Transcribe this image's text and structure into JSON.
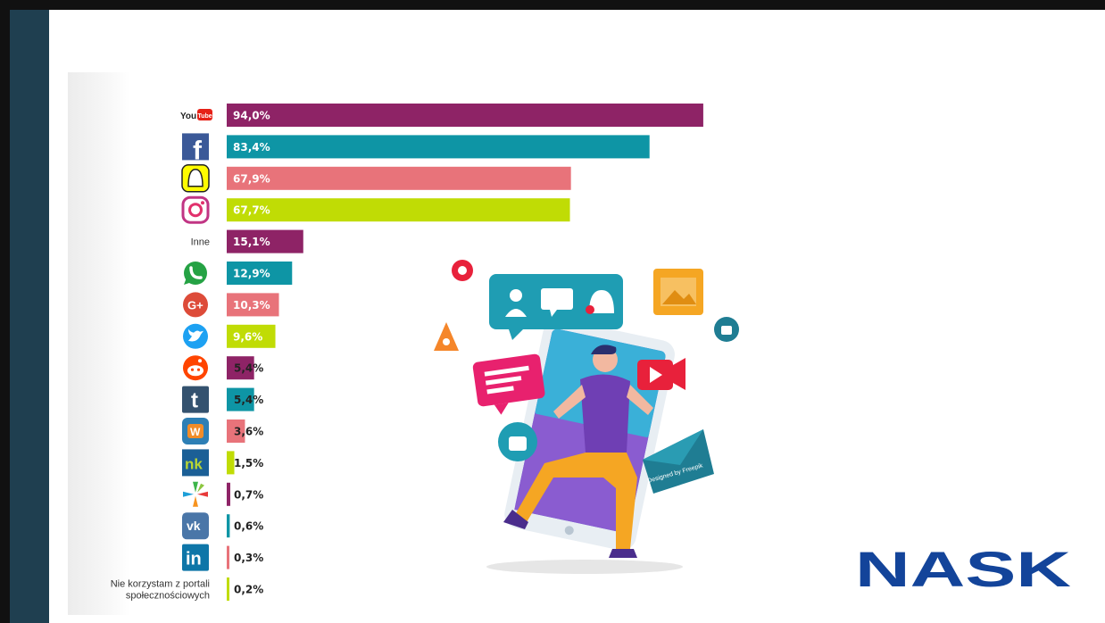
{
  "colors": {
    "purple": "#8e2366",
    "teal": "#0e95a5",
    "salmon": "#e8737a",
    "lime": "#c0dc05",
    "sidebar": "#1f3f50",
    "nask_blue": "#13449a"
  },
  "chart_data": {
    "type": "bar",
    "orientation": "horizontal",
    "categories": [
      "YouTube",
      "Facebook",
      "Snapchat",
      "Instagram",
      "Inne",
      "WhatsApp",
      "Google+",
      "Twitter",
      "Reddit",
      "Tumblr",
      "Wykop",
      "nk",
      "Gadu-Gadu",
      "VK",
      "LinkedIn",
      "Nie korzystam z portali społecznościowych"
    ],
    "values": [
      94.0,
      83.4,
      67.9,
      67.7,
      15.1,
      12.9,
      10.3,
      9.6,
      5.4,
      5.4,
      3.6,
      1.5,
      0.7,
      0.6,
      0.3,
      0.2
    ],
    "value_labels": [
      "94,0%",
      "83,4%",
      "67,9%",
      "67,7%",
      "15,1%",
      "12,9%",
      "10,3%",
      "9,6%",
      "5,4%",
      "5,4%",
      "3,6%",
      "1,5%",
      "0,7%",
      "0,6%",
      "0,3%",
      "0,2%"
    ],
    "xlim": [
      0,
      100
    ],
    "label_type": [
      "icon",
      "icon",
      "icon",
      "icon",
      "text",
      "icon",
      "icon",
      "icon",
      "icon",
      "icon",
      "icon",
      "icon",
      "icon",
      "icon",
      "icon",
      "text"
    ],
    "text_labels": {
      "4": [
        "Inne"
      ],
      "15": [
        "Nie korzystam z portali",
        "społecznościowych"
      ]
    },
    "bar_colors": [
      "#8e2366",
      "#0e95a5",
      "#e8737a",
      "#c0dc05",
      "#8e2366",
      "#0e95a5",
      "#e8737a",
      "#c0dc05",
      "#8e2366",
      "#0e95a5",
      "#e8737a",
      "#c0dc05",
      "#8e2366",
      "#0e95a5",
      "#e8737a",
      "#c0dc05"
    ],
    "icons": [
      "youtube-icon",
      "facebook-icon",
      "snapchat-icon",
      "instagram-icon",
      "",
      "whatsapp-icon",
      "google-plus-icon",
      "twitter-icon",
      "reddit-icon",
      "tumblr-icon",
      "wykop-icon",
      "nk-icon",
      "gadu-gadu-icon",
      "vk-icon",
      "linkedin-icon",
      ""
    ],
    "grid": false,
    "legend": "none"
  },
  "illustration": {
    "credit": "Designed by Freepik"
  },
  "logo": {
    "text": "NASK"
  }
}
